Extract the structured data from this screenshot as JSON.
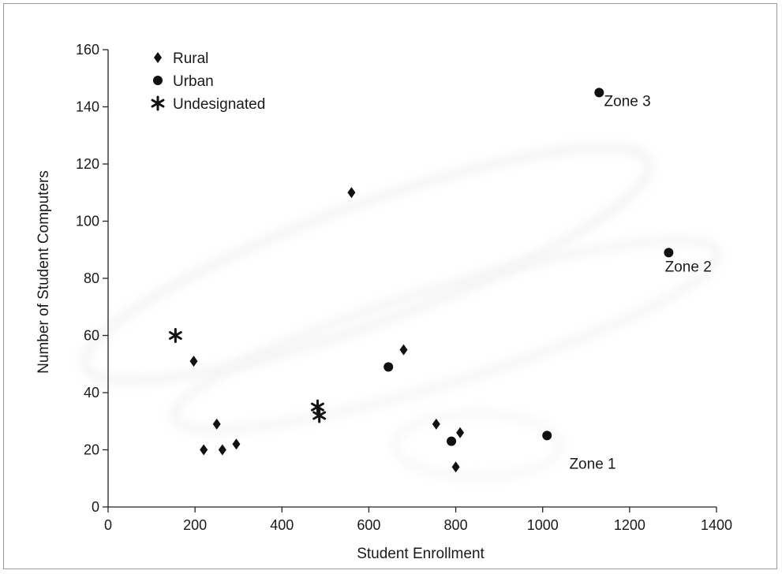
{
  "chart_data": {
    "type": "scatter",
    "title": "",
    "xlabel": "Student Enrollment",
    "ylabel": "Number of Student Computers",
    "xlim": [
      0,
      1400
    ],
    "ylim": [
      0,
      160
    ],
    "xticks": [
      0,
      200,
      400,
      600,
      800,
      1000,
      1200,
      1400
    ],
    "yticks": [
      0,
      20,
      40,
      60,
      80,
      100,
      120,
      140,
      160
    ],
    "grid": false,
    "legend_position": "top-left",
    "series": [
      {
        "name": "Rural",
        "marker": "diamond",
        "color": "#111111",
        "points": [
          [
            197,
            51
          ],
          [
            220,
            20
          ],
          [
            250,
            29
          ],
          [
            263,
            20
          ],
          [
            295,
            22
          ],
          [
            560,
            110
          ],
          [
            680,
            55
          ],
          [
            755,
            29
          ],
          [
            800,
            14
          ],
          [
            810,
            26
          ]
        ]
      },
      {
        "name": "Urban",
        "marker": "circle",
        "color": "#111111",
        "points": [
          [
            645,
            49
          ],
          [
            790,
            23
          ],
          [
            1010,
            25
          ],
          [
            1130,
            145
          ],
          [
            1290,
            89
          ]
        ]
      },
      {
        "name": "Undesignated",
        "marker": "star",
        "color": "#111111",
        "points": [
          [
            155,
            60
          ],
          [
            482,
            35
          ],
          [
            486,
            32
          ]
        ]
      }
    ],
    "annotations": [
      {
        "text": "Zone 3",
        "x": 1195,
        "y": 142
      },
      {
        "text": "Zone 2",
        "x": 1335,
        "y": 84
      },
      {
        "text": "Zone 1",
        "x": 1115,
        "y": 15
      }
    ]
  }
}
